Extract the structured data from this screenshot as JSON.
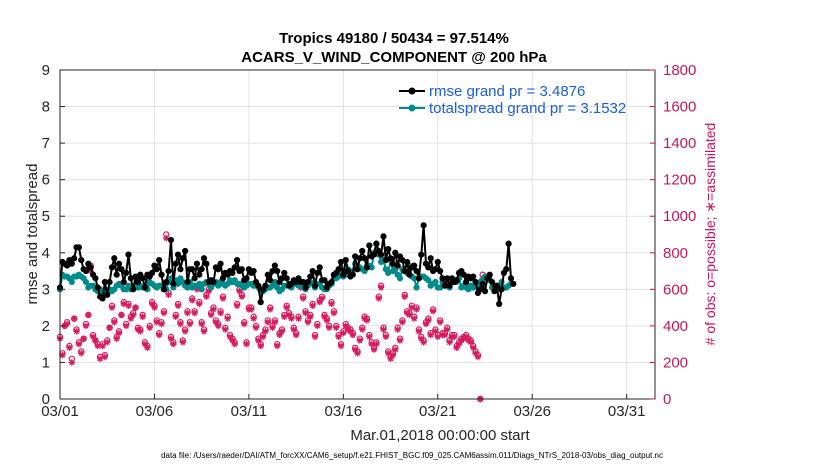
{
  "chart_data": {
    "type": "line",
    "title": "Tropics 49180 / 50434 = 97.514%",
    "subtitle": "ACARS_V_WIND_COMPONENT @ 200 hPa",
    "xlabel": "Mar.01,2018 00:00:00 start",
    "ylabel": "rmse and totalspread",
    "ylabel_right": "# of obs: o=possible; ∗=assimilated",
    "xlim": [
      0,
      31.5
    ],
    "ylim": [
      0,
      9
    ],
    "ylim_right": [
      0,
      1800
    ],
    "x_ticks": [
      0,
      5,
      10,
      15,
      20,
      25,
      30
    ],
    "x_tick_labels": [
      "03/01",
      "03/06",
      "03/11",
      "03/16",
      "03/21",
      "03/26",
      "03/31"
    ],
    "y_ticks": [
      "0",
      "1",
      "2",
      "3",
      "4",
      "5",
      "6",
      "7",
      "8",
      "9"
    ],
    "y_ticks_right": [
      "0",
      "200",
      "400",
      "600",
      "800",
      "1000",
      "1200",
      "1400",
      "1600",
      "1800"
    ],
    "grid": true,
    "legend_position": "top-right",
    "step_days": 0.125,
    "footnote": "data file: /Users/raeder/DAI/ATM_forcXX/CAM6_setup/f.e21.FHIST_BGC.f09_025.CAM6assim.011/Diags_NTrS_2018-03/obs_diag_output.nc",
    "series": [
      {
        "name": "rmse",
        "legend": "rmse grand pr = 3.4876",
        "axis": "left",
        "color": "#000000",
        "values": [
          3.05,
          3.75,
          3.7,
          3.65,
          3.8,
          3.7,
          3.85,
          4.15,
          4.15,
          3.8,
          3.55,
          3.5,
          3.7,
          3.6,
          3.4,
          3.3,
          3.05,
          2.8,
          2.75,
          3.2,
          2.85,
          3.2,
          3.6,
          3.85,
          3.4,
          3.7,
          3.55,
          3.2,
          3.45,
          3.95,
          3.3,
          3.0,
          3.35,
          3.2,
          3.4,
          3.3,
          3.05,
          3.4,
          3.35,
          3.45,
          3.65,
          3.55,
          3.8,
          3.4,
          3.0,
          3.2,
          3.5,
          4.35,
          3.15,
          3.7,
          3.95,
          3.55,
          3.85,
          4.05,
          3.2,
          3.55,
          3.55,
          3.3,
          3.7,
          3.4,
          3.55,
          3.85,
          3.7,
          3.2,
          3.25,
          3.2,
          3.6,
          3.55,
          3.7,
          3.3,
          3.45,
          3.4,
          3.5,
          3.45,
          3.6,
          3.8,
          3.5,
          3.55,
          3.25,
          3.3,
          3.55,
          3.45,
          3.5,
          3.2,
          3.1,
          2.65,
          3.0,
          3.1,
          3.4,
          3.25,
          3.5,
          3.65,
          3.5,
          3.2,
          3.3,
          3.45,
          3.3,
          3.1,
          3.15,
          3.25,
          3.2,
          3.3,
          3.2,
          3.2,
          3.05,
          3.2,
          3.35,
          3.5,
          3.1,
          3.45,
          3.6,
          3.25,
          3.25,
          3.05,
          3.15,
          3.2,
          3.4,
          3.45,
          3.55,
          3.75,
          3.4,
          3.8,
          3.5,
          3.35,
          3.4,
          3.9,
          3.55,
          3.85,
          4.05,
          3.85,
          3.6,
          4.2,
          3.9,
          3.95,
          4.25,
          4.05,
          3.95,
          4.45,
          3.8,
          4.1,
          3.85,
          3.7,
          4.0,
          3.65,
          3.9,
          3.8,
          3.5,
          3.75,
          3.4,
          3.6,
          3.65,
          3.5,
          3.3,
          3.95,
          4.75,
          3.7,
          3.6,
          3.85,
          3.5,
          3.55,
          3.75,
          3.5,
          3.3,
          3.1,
          3.3,
          3.1,
          3.3,
          3.2,
          3.25,
          3.45,
          3.5,
          3.4,
          3.2,
          3.35,
          3.3,
          3.35,
          3.2,
          2.9,
          3.0,
          3.15,
          2.95,
          3.3,
          3.4,
          3.2,
          2.95,
          3.1,
          2.6,
          3.0,
          3.45,
          3.55,
          4.25,
          3.3,
          3.15
        ]
      },
      {
        "name": "totalspread",
        "legend": "totalspread grand pr = 3.1532",
        "axis": "left",
        "color": "#008b8b",
        "values": [
          3.0,
          3.4,
          3.35,
          3.35,
          3.3,
          3.2,
          3.35,
          3.35,
          3.4,
          3.35,
          3.3,
          3.2,
          3.05,
          3.1,
          3.1,
          3.0,
          2.95,
          3.0,
          2.95,
          2.9,
          2.85,
          3.0,
          2.95,
          3.0,
          3.1,
          3.15,
          3.1,
          3.0,
          3.0,
          3.1,
          3.0,
          3.05,
          3.1,
          3.05,
          3.1,
          3.05,
          3.1,
          3.0,
          3.2,
          3.15,
          3.1,
          3.05,
          3.1,
          3.1,
          3.0,
          3.0,
          3.2,
          3.3,
          3.05,
          3.25,
          3.15,
          3.3,
          3.2,
          3.1,
          3.05,
          3.2,
          3.05,
          3.1,
          3.1,
          3.15,
          3.0,
          3.15,
          3.2,
          3.15,
          3.05,
          3.15,
          3.2,
          3.1,
          3.2,
          3.15,
          3.1,
          3.15,
          3.25,
          3.2,
          3.25,
          3.15,
          3.15,
          3.1,
          3.05,
          3.1,
          3.15,
          3.15,
          3.1,
          3.15,
          3.05,
          2.95,
          2.95,
          3.0,
          3.05,
          3.05,
          3.1,
          3.2,
          3.05,
          2.95,
          3.0,
          3.1,
          3.1,
          3.15,
          3.05,
          3.15,
          3.15,
          3.1,
          3.1,
          3.05,
          3.0,
          3.1,
          3.2,
          3.15,
          3.05,
          3.15,
          3.15,
          3.05,
          3.0,
          3.0,
          3.1,
          3.15,
          3.3,
          3.3,
          3.35,
          3.5,
          3.35,
          3.4,
          3.55,
          3.45,
          3.5,
          3.7,
          3.55,
          3.6,
          3.55,
          3.5,
          3.65,
          3.65,
          3.6,
          4.0,
          4.25,
          3.95,
          3.75,
          3.8,
          3.55,
          3.45,
          3.8,
          3.5,
          3.55,
          3.4,
          3.3,
          3.55,
          3.5,
          3.45,
          3.65,
          3.35,
          3.3,
          3.05,
          3.3,
          3.35,
          3.35,
          3.3,
          3.25,
          3.1,
          3.15,
          3.2,
          3.05,
          3.05,
          3.2,
          3.1,
          3.15,
          3.05,
          3.2,
          3.25,
          3.2,
          3.3,
          3.05,
          3.1,
          3.05,
          3.0,
          3.1,
          3.05,
          3.1,
          3.05,
          3.2,
          3.25,
          3.35,
          3.3,
          3.25,
          3.05,
          3.0,
          3.1,
          3.0,
          3.2,
          3.05,
          3.05,
          3.1,
          3.15
        ]
      },
      {
        "name": "obs possible",
        "axis": "right",
        "color": "#d81b60",
        "marker": "o",
        "values": [
          340,
          250,
          400,
          420,
          290,
          220,
          440,
          380,
          310,
          260,
          330,
          410,
          460,
          730,
          350,
          320,
          300,
          230,
          300,
          240,
          320,
          390,
          510,
          430,
          340,
          370,
          460,
          530,
          410,
          520,
          450,
          470,
          500,
          390,
          380,
          460,
          310,
          290,
          400,
          530,
          510,
          430,
          360,
          420,
          480,
          900,
          580,
          340,
          310,
          460,
          520,
          420,
          320,
          380,
          480,
          420,
          550,
          480,
          610,
          530,
          420,
          380,
          570,
          600,
          470,
          500,
          430,
          410,
          480,
          560,
          390,
          450,
          350,
          330,
          310,
          520,
          600,
          570,
          420,
          310,
          500,
          500,
          450,
          400,
          330,
          300,
          350,
          380,
          430,
          500,
          400,
          430,
          300,
          360,
          380,
          460,
          510,
          470,
          450,
          390,
          360,
          450,
          620,
          560,
          480,
          430,
          460,
          520,
          350,
          410,
          540,
          560,
          460,
          440,
          400,
          530,
          480,
          400,
          350,
          300,
          370,
          410,
          390,
          380,
          360,
          280,
          260,
          330,
          390,
          450,
          440,
          350,
          310,
          280,
          310,
          560,
          620,
          390,
          350,
          260,
          230,
          250,
          280,
          390,
          330,
          430,
          570,
          480,
          470,
          510,
          450,
          500,
          380,
          340,
          320,
          420,
          440,
          360,
          490,
          380,
          350,
          430,
          360,
          360,
          390,
          320,
          350,
          350,
          290,
          310,
          330,
          340,
          350,
          330,
          320,
          290,
          260,
          240,
          0,
          680
        ]
      },
      {
        "name": "obs assimilated",
        "axis": "right",
        "color": "#d81b60",
        "marker": "*",
        "values": [
          330,
          240,
          400,
          410,
          280,
          200,
          440,
          370,
          300,
          250,
          330,
          400,
          460,
          700,
          340,
          320,
          290,
          220,
          290,
          230,
          310,
          390,
          500,
          420,
          330,
          360,
          460,
          520,
          400,
          510,
          440,
          460,
          500,
          380,
          370,
          450,
          300,
          280,
          390,
          520,
          500,
          420,
          350,
          410,
          470,
          880,
          570,
          330,
          300,
          450,
          510,
          410,
          310,
          370,
          470,
          410,
          540,
          470,
          600,
          520,
          410,
          370,
          560,
          590,
          460,
          490,
          420,
          400,
          470,
          550,
          380,
          440,
          340,
          320,
          300,
          510,
          590,
          560,
          410,
          300,
          490,
          490,
          440,
          390,
          320,
          290,
          340,
          370,
          420,
          490,
          390,
          420,
          290,
          350,
          370,
          450,
          500,
          460,
          440,
          380,
          350,
          440,
          610,
          550,
          470,
          420,
          450,
          510,
          340,
          400,
          530,
          550,
          450,
          430,
          390,
          520,
          470,
          390,
          340,
          290,
          360,
          400,
          380,
          370,
          350,
          270,
          250,
          320,
          380,
          440,
          430,
          340,
          300,
          270,
          300,
          550,
          610,
          380,
          340,
          250,
          220,
          240,
          270,
          380,
          320,
          420,
          560,
          470,
          460,
          500,
          440,
          490,
          370,
          330,
          310,
          410,
          430,
          350,
          480,
          370,
          340,
          420,
          350,
          350,
          380,
          310,
          340,
          340,
          280,
          300,
          320,
          330,
          340,
          320,
          310,
          280,
          250,
          230,
          0,
          660
        ]
      }
    ]
  }
}
